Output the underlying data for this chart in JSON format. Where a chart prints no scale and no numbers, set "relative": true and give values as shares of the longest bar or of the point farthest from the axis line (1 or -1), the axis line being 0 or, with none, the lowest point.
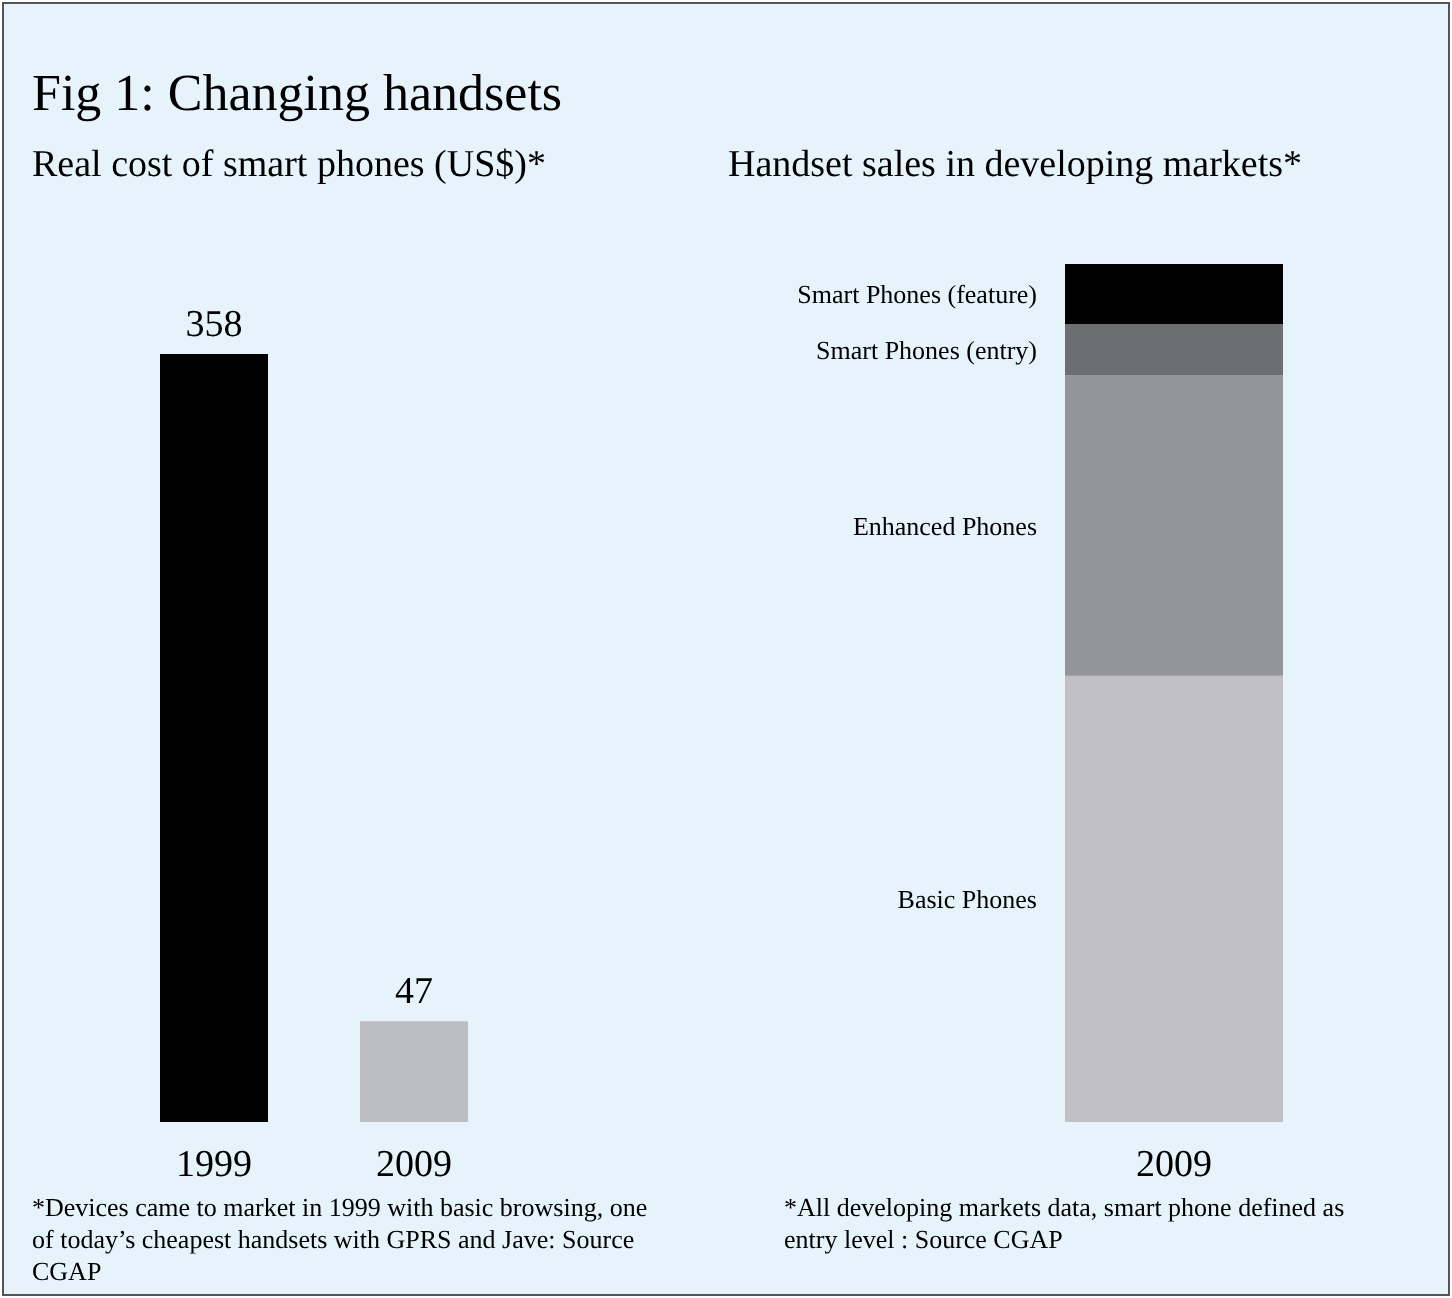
{
  "chart_data": [
    {
      "type": "bar",
      "title": "Fig 1:  Changing handsets",
      "subtitle": "Real cost of smart phones (US$)*",
      "categories": [
        "1999",
        "2009"
      ],
      "values": [
        358,
        47
      ],
      "colors": [
        "#000000",
        "#bcbec0"
      ],
      "data_labels": true,
      "grid": false,
      "legend": false,
      "annotations": [
        "*Devices came to market in 1999 with basic browsing, one of today’s cheapest handsets with GPRS and Jave: Source CGAP"
      ]
    },
    {
      "type": "bar",
      "title": "Handset sales in developing markets*",
      "categories": [
        "2009"
      ],
      "stacked": true,
      "relative": true,
      "grid": false,
      "legend": false,
      "series": [
        {
          "name": "Basic Phones",
          "color": "#c0c0c2",
          "values": [
            0.52
          ]
        },
        {
          "name": "Enhanced Phones",
          "color": "#939598",
          "values": [
            0.35
          ]
        },
        {
          "name": "Smart Phones (entry)",
          "color": "#6d6e71",
          "values": [
            0.06
          ]
        },
        {
          "name": "Smart Phones (feature)",
          "color": "#000000",
          "values": [
            0.07
          ]
        }
      ],
      "annotations": [
        "*All developing markets data, smart phone defined as entry level : Source CGAP"
      ]
    }
  ]
}
